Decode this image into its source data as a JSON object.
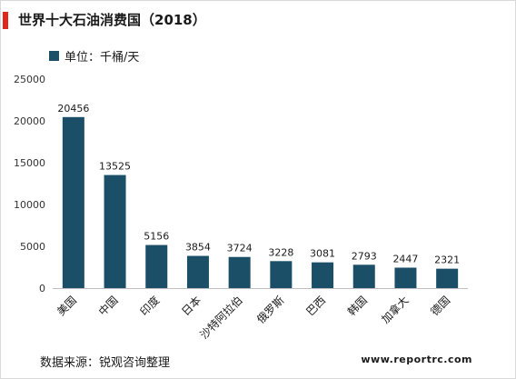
{
  "header": {
    "title": "世界十大石油消费国（2018）",
    "accent_color": "#e1261c"
  },
  "legend": {
    "label": "单位：千桶/天",
    "color": "#1a4f67"
  },
  "footer": {
    "source": "数据来源：锐观咨询整理",
    "website": "www.reportrc.com"
  },
  "chart_data": {
    "type": "bar",
    "title": "世界十大石油消费国（2018）",
    "xlabel": "",
    "ylabel": "",
    "categories": [
      "美国",
      "中国",
      "印度",
      "日本",
      "沙特阿拉伯",
      "俄罗斯",
      "巴西",
      "韩国",
      "加拿大",
      "德国"
    ],
    "series": [
      {
        "name": "单位：千桶/天",
        "values": [
          20456,
          13525,
          5156,
          3854,
          3724,
          3228,
          3081,
          2793,
          2447,
          2321
        ]
      }
    ],
    "ylim": [
      0,
      25000
    ],
    "yticks": [
      0,
      5000,
      10000,
      15000,
      20000,
      25000
    ],
    "grid": false,
    "legend_position": "top-left",
    "bar_color": "#1a4f67"
  }
}
